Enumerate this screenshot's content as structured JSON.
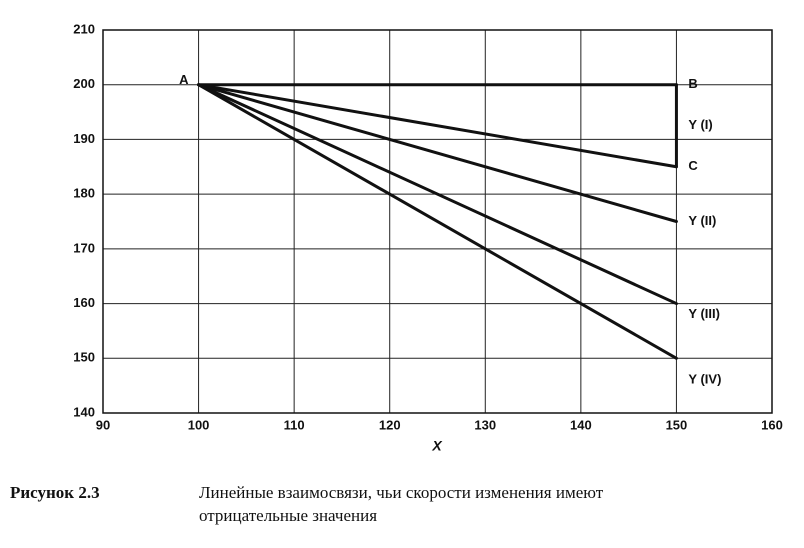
{
  "chart_data": {
    "type": "line",
    "x_label": "X",
    "xlim": [
      90,
      160
    ],
    "xticks": [
      90,
      100,
      110,
      120,
      130,
      140,
      150,
      160
    ],
    "ylim": [
      140,
      210
    ],
    "yticks": [
      140,
      150,
      160,
      170,
      180,
      190,
      200,
      210
    ],
    "grid": true,
    "color": "#111111",
    "series": [
      {
        "x": [
          100,
          150
        ],
        "values": [
          200,
          200
        ]
      },
      {
        "x": [
          150,
          150
        ],
        "values": [
          200,
          185
        ]
      },
      {
        "x": [
          100,
          150
        ],
        "values": [
          200,
          185
        ]
      },
      {
        "x": [
          100,
          150
        ],
        "values": [
          200,
          175
        ]
      },
      {
        "x": [
          100,
          150
        ],
        "values": [
          200,
          160
        ]
      },
      {
        "x": [
          100,
          150
        ],
        "values": [
          200,
          150
        ]
      }
    ],
    "annotations": [
      {
        "text": "A",
        "x": 100,
        "y": 200,
        "side": "left"
      },
      {
        "text": "B",
        "x": 150,
        "y": 200,
        "side": "right"
      },
      {
        "text": "C",
        "x": 150,
        "y": 185,
        "side": "right"
      },
      {
        "text": "Y (I)",
        "x": 150,
        "y": 192.5,
        "side": "right"
      },
      {
        "text": "Y (II)",
        "x": 150,
        "y": 175,
        "side": "right"
      },
      {
        "text": "Y (III)",
        "x": 150,
        "y": 158,
        "side": "right"
      },
      {
        "text": "Y (IV)",
        "x": 150,
        "y": 146,
        "side": "right"
      }
    ]
  },
  "caption": {
    "label": "Рисунок 2.3",
    "lines": [
      "Линейные взаимосвязи, чьи скорости изменения имеют",
      "отрицательные значения"
    ]
  }
}
